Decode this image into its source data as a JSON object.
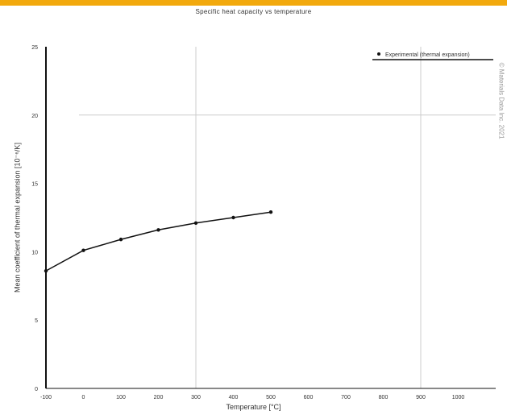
{
  "colors": {
    "accent_bar": "#f2a90d",
    "series": "#111111",
    "grid": "#cccccc",
    "axis": "#111111"
  },
  "source_note": "© Materials Data Inc. 2021",
  "chart_data": {
    "type": "line",
    "title": "Specific heat capacity vs temperature",
    "xlabel": "Temperature [°C]",
    "ylabel": "Mean coefficient of thermal expansion [10⁻⁶/K]",
    "xlim": [
      -100,
      1100
    ],
    "ylim": [
      0,
      25
    ],
    "x_ticks": [
      "-100",
      "0",
      "100",
      "200",
      "300",
      "400",
      "500",
      "600",
      "700",
      "800",
      "900",
      "1000"
    ],
    "y_ticks": [
      "0",
      "5",
      "10",
      "15",
      "20",
      "25"
    ],
    "grid": "sparse",
    "legend_position": "top-right",
    "series": [
      {
        "name": "Experimental (thermal expansion)",
        "x": [
          -100,
          0,
          100,
          200,
          300,
          400,
          500
        ],
        "y": [
          8.6,
          10.1,
          10.9,
          11.6,
          12.1,
          12.5,
          12.9
        ]
      }
    ]
  }
}
